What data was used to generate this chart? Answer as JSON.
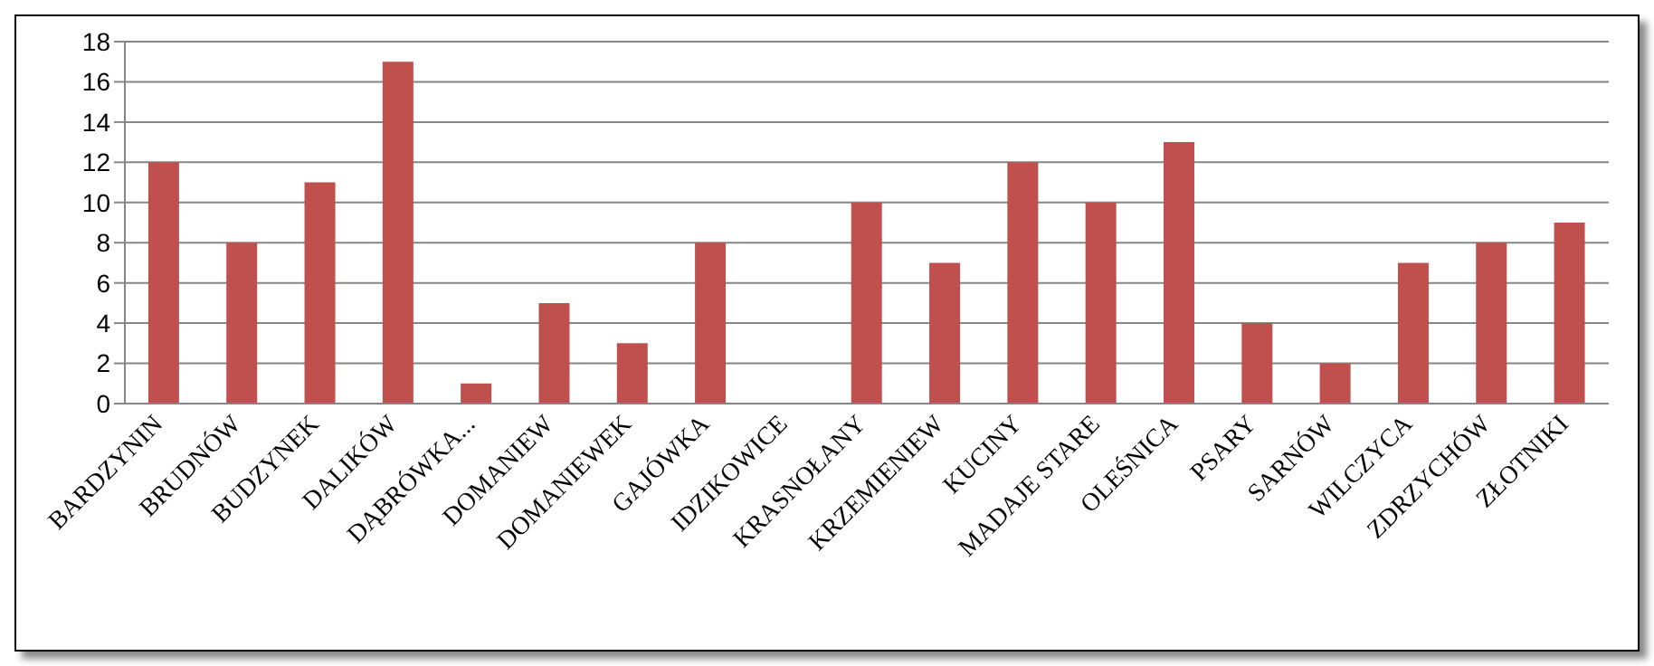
{
  "chart_data": {
    "type": "bar",
    "categories": [
      "BARDZYNIN",
      "BRUDNÓW",
      "BUDZYNEK",
      "DALIKÓW",
      "DĄBRÓWKA...",
      "DOMANIEW",
      "DOMANIEWEK",
      "GAJÓWKA",
      "IDZIKOWICE",
      "KRASNOŁANY",
      "KRZEMIENIEW",
      "KUCINY",
      "MADAJE STARE",
      "OLEŚNICA",
      "PSARY",
      "SARNÓW",
      "WILCZYCA",
      "ZDRZYCHÓW",
      "ZŁOTNIKI"
    ],
    "values": [
      12,
      8,
      11,
      17,
      1,
      5,
      3,
      8,
      0,
      10,
      7,
      12,
      10,
      13,
      4,
      2,
      7,
      8,
      9
    ],
    "color": "#c0504d",
    "ylim": [
      0,
      18
    ],
    "yticks": [
      0,
      2,
      4,
      6,
      8,
      10,
      12,
      14,
      16,
      18
    ],
    "grid": "y",
    "legend": false
  }
}
